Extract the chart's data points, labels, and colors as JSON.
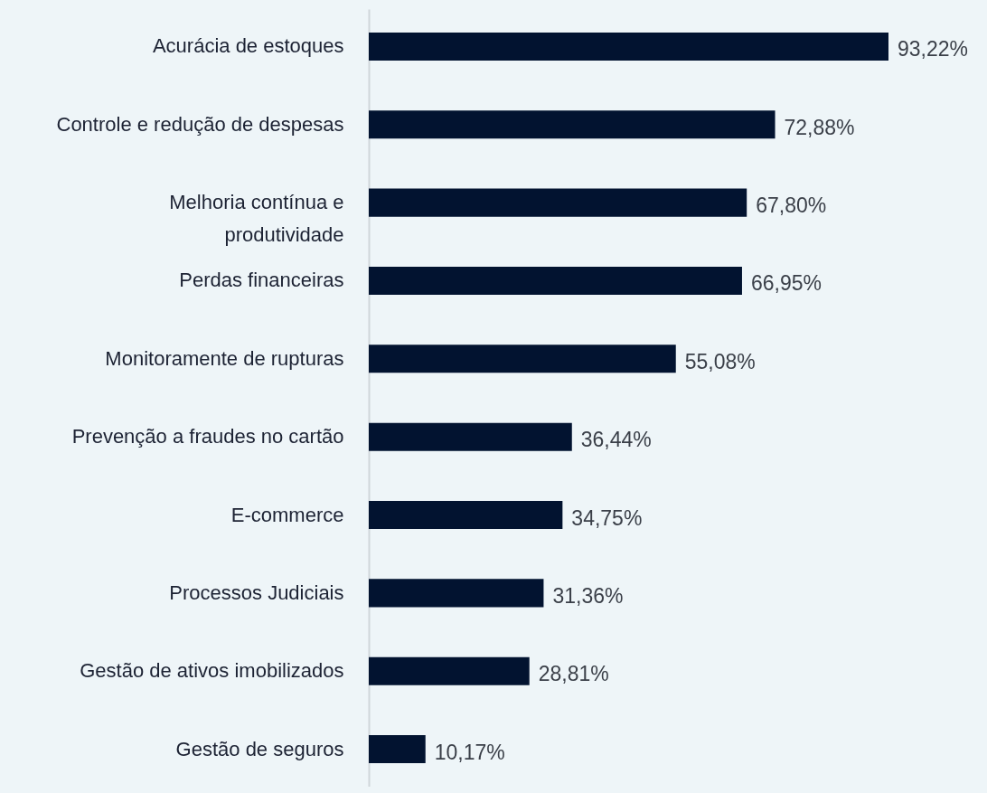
{
  "chart_data": {
    "type": "bar",
    "orientation": "horizontal",
    "categories": [
      "Acurácia de estoques",
      "Controle e redução de despesas",
      "Melhoria contínua e produtividade",
      "Perdas financeiras",
      "Monitoramente de rupturas",
      "Prevenção a fraudes no cartão",
      "E-commerce",
      "Processos Judiciais",
      "Gestão de ativos imobilizados",
      "Gestão de seguros"
    ],
    "values": [
      93.22,
      72.88,
      67.8,
      66.95,
      55.08,
      36.44,
      34.75,
      31.36,
      28.81,
      10.17
    ],
    "value_labels": [
      "93,22%",
      "72,88%",
      "67,80%",
      "66,95%",
      "55,08%",
      "36,44%",
      "34,75%",
      "31,36%",
      "28,81%",
      "10,17%"
    ],
    "color": "#021330",
    "grid": false
  }
}
